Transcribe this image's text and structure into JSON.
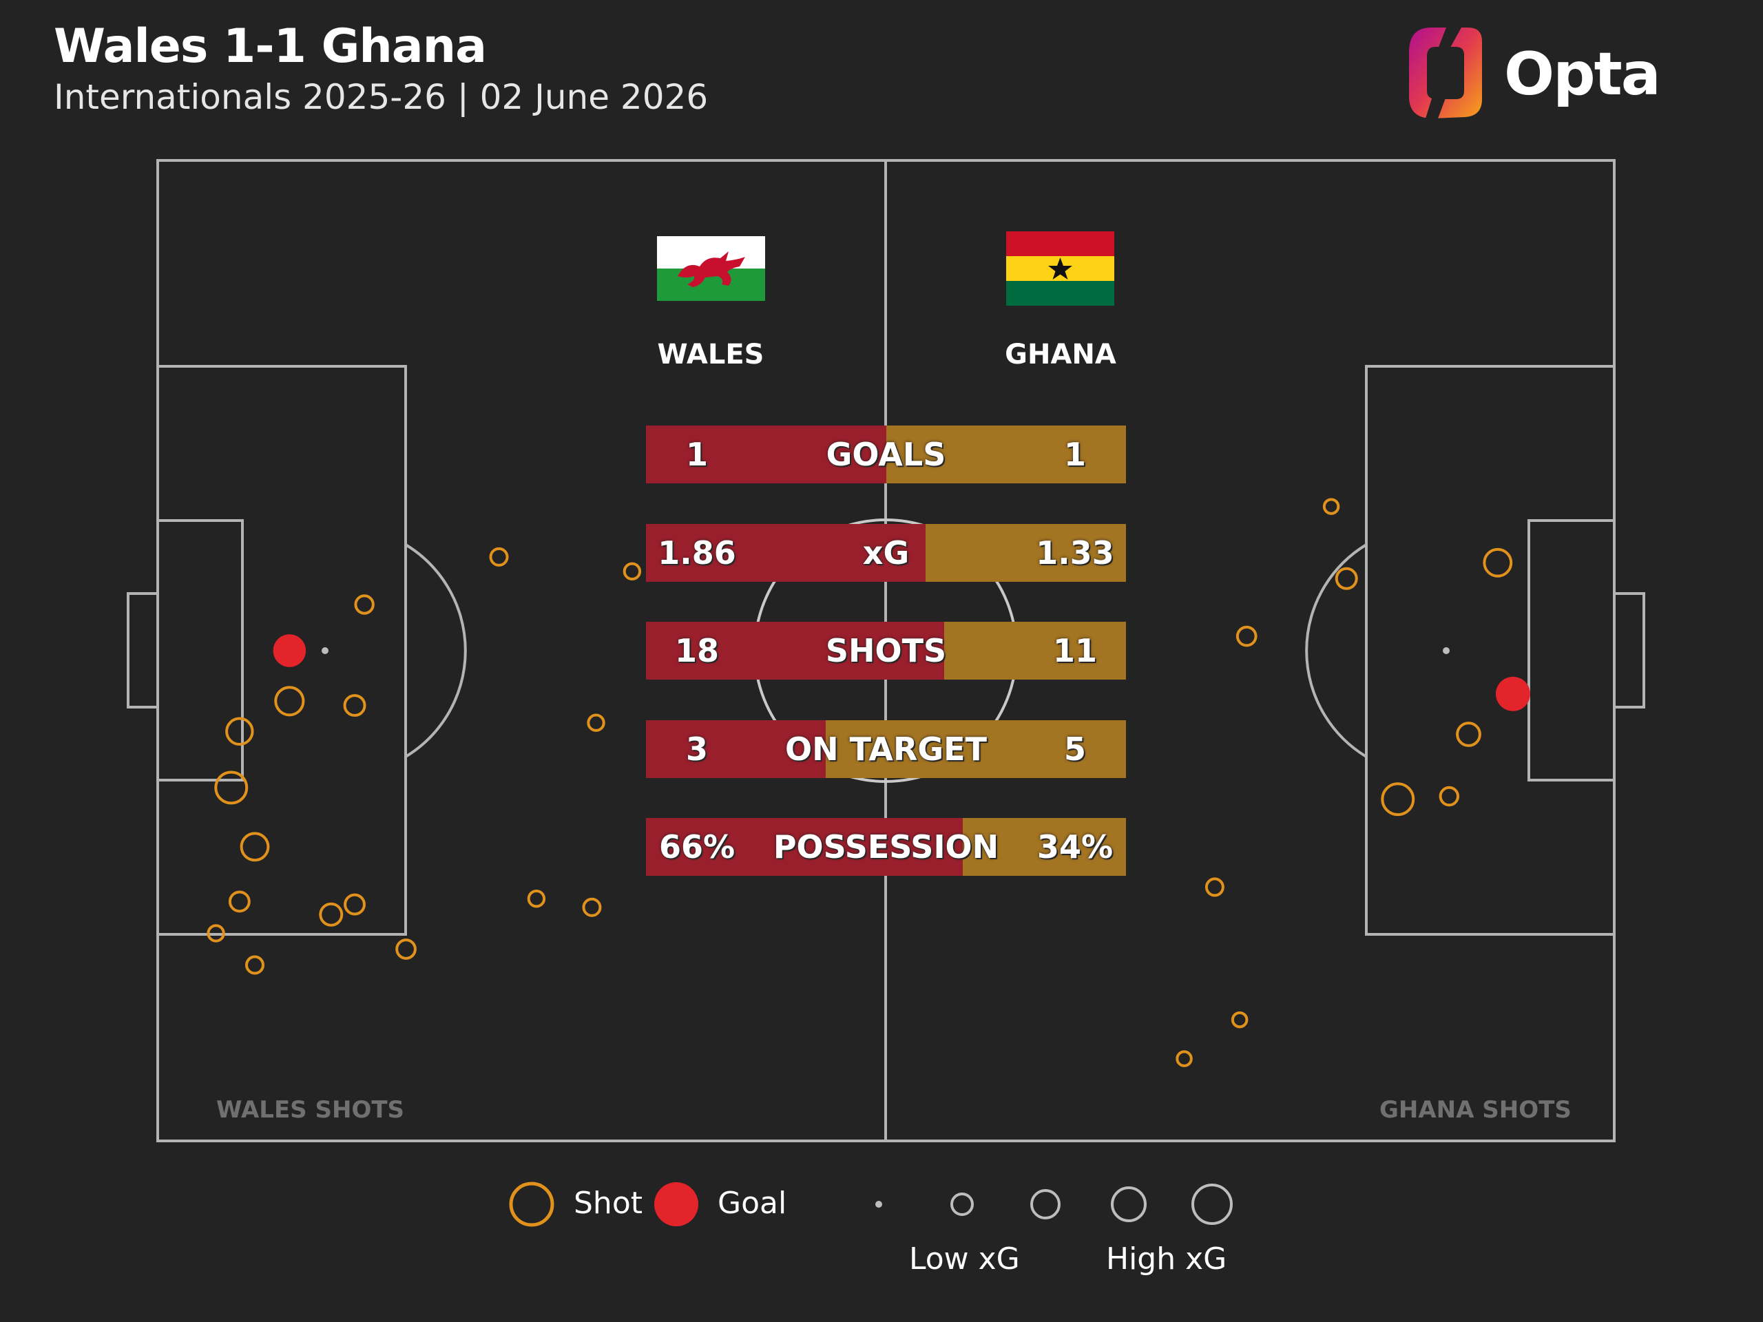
{
  "header": {
    "title": "Wales 1-1 Ghana",
    "subtitle": "Internationals 2025-26 | 02 June 2026"
  },
  "brand": {
    "name": "Opta",
    "icon": "opta-logo-icon"
  },
  "teams": {
    "home": {
      "name": "WALES",
      "flag": "wales-flag-icon",
      "color": "#9a1f2c"
    },
    "away": {
      "name": "GHANA",
      "flag": "ghana-flag-icon",
      "color": "#a37422"
    }
  },
  "pitch_labels": {
    "home": "WALES SHOTS",
    "away": "GHANA SHOTS"
  },
  "legend": {
    "shot": "Shot",
    "goal": "Goal",
    "low_xg": "Low xG",
    "high_xg": "High xG",
    "shot_color": "#e0921c",
    "goal_color": "#e3242b"
  },
  "chart_data": [
    {
      "type": "bar",
      "categories": [
        "GOALS",
        "xG",
        "SHOTS",
        "ON TARGET",
        "POSSESSION"
      ],
      "series": [
        {
          "name": "WALES",
          "values": [
            1,
            1.86,
            18,
            3,
            66
          ],
          "labels": [
            "1",
            "1.86",
            "18",
            "3",
            "66%"
          ]
        },
        {
          "name": "GHANA",
          "values": [
            1,
            1.33,
            11,
            5,
            34
          ],
          "labels": [
            "1",
            "1.33",
            "11",
            "5",
            "34%"
          ]
        }
      ]
    },
    {
      "type": "scatter",
      "title": "WALES SHOTS",
      "units": "pitch coordinates, metres from own-half goal line (x) and from top touchline (y)",
      "points": [
        {
          "x": 9.5,
          "y": 34.0,
          "xg": 0.35,
          "goal": true
        },
        {
          "x": 9.5,
          "y": 37.5,
          "xg": 0.22,
          "goal": false
        },
        {
          "x": 14.2,
          "y": 37.8,
          "xg": 0.08,
          "goal": false
        },
        {
          "x": 5.9,
          "y": 39.6,
          "xg": 0.18,
          "goal": false
        },
        {
          "x": 14.9,
          "y": 30.8,
          "xg": 0.05,
          "goal": false
        },
        {
          "x": 5.3,
          "y": 43.5,
          "xg": 0.3,
          "goal": false
        },
        {
          "x": 7.0,
          "y": 47.6,
          "xg": 0.2,
          "goal": false
        },
        {
          "x": 5.9,
          "y": 51.4,
          "xg": 0.07,
          "goal": false
        },
        {
          "x": 4.2,
          "y": 53.6,
          "xg": 0.03,
          "goal": false
        },
        {
          "x": 7.0,
          "y": 55.8,
          "xg": 0.04,
          "goal": false
        },
        {
          "x": 12.5,
          "y": 52.3,
          "xg": 0.1,
          "goal": false
        },
        {
          "x": 14.2,
          "y": 51.6,
          "xg": 0.07,
          "goal": false
        },
        {
          "x": 17.9,
          "y": 54.7,
          "xg": 0.06,
          "goal": false
        },
        {
          "x": 24.6,
          "y": 27.5,
          "xg": 0.04,
          "goal": false
        },
        {
          "x": 34.2,
          "y": 28.5,
          "xg": 0.03,
          "goal": false
        },
        {
          "x": 31.6,
          "y": 39.0,
          "xg": 0.03,
          "goal": false
        },
        {
          "x": 27.3,
          "y": 51.2,
          "xg": 0.03,
          "goal": false
        },
        {
          "x": 31.3,
          "y": 51.8,
          "xg": 0.04,
          "goal": false
        }
      ]
    },
    {
      "type": "scatter",
      "title": "GHANA SHOTS",
      "units": "pitch coordinates, metres from left goal line (x) and from top touchline (y)",
      "points": [
        {
          "x": 97.7,
          "y": 37.0,
          "xg": 0.4,
          "goal": true
        },
        {
          "x": 96.6,
          "y": 27.9,
          "xg": 0.2,
          "goal": false
        },
        {
          "x": 94.5,
          "y": 39.8,
          "xg": 0.12,
          "goal": false
        },
        {
          "x": 84.6,
          "y": 24.0,
          "xg": 0.02,
          "goal": false
        },
        {
          "x": 85.7,
          "y": 29.0,
          "xg": 0.08,
          "goal": false
        },
        {
          "x": 78.5,
          "y": 33.0,
          "xg": 0.06,
          "goal": false
        },
        {
          "x": 89.4,
          "y": 44.3,
          "xg": 0.3,
          "goal": false
        },
        {
          "x": 93.1,
          "y": 44.1,
          "xg": 0.05,
          "goal": false
        },
        {
          "x": 76.2,
          "y": 50.4,
          "xg": 0.04,
          "goal": false
        },
        {
          "x": 78.0,
          "y": 59.6,
          "xg": 0.02,
          "goal": false
        },
        {
          "x": 74.0,
          "y": 62.3,
          "xg": 0.02,
          "goal": false
        }
      ]
    }
  ]
}
